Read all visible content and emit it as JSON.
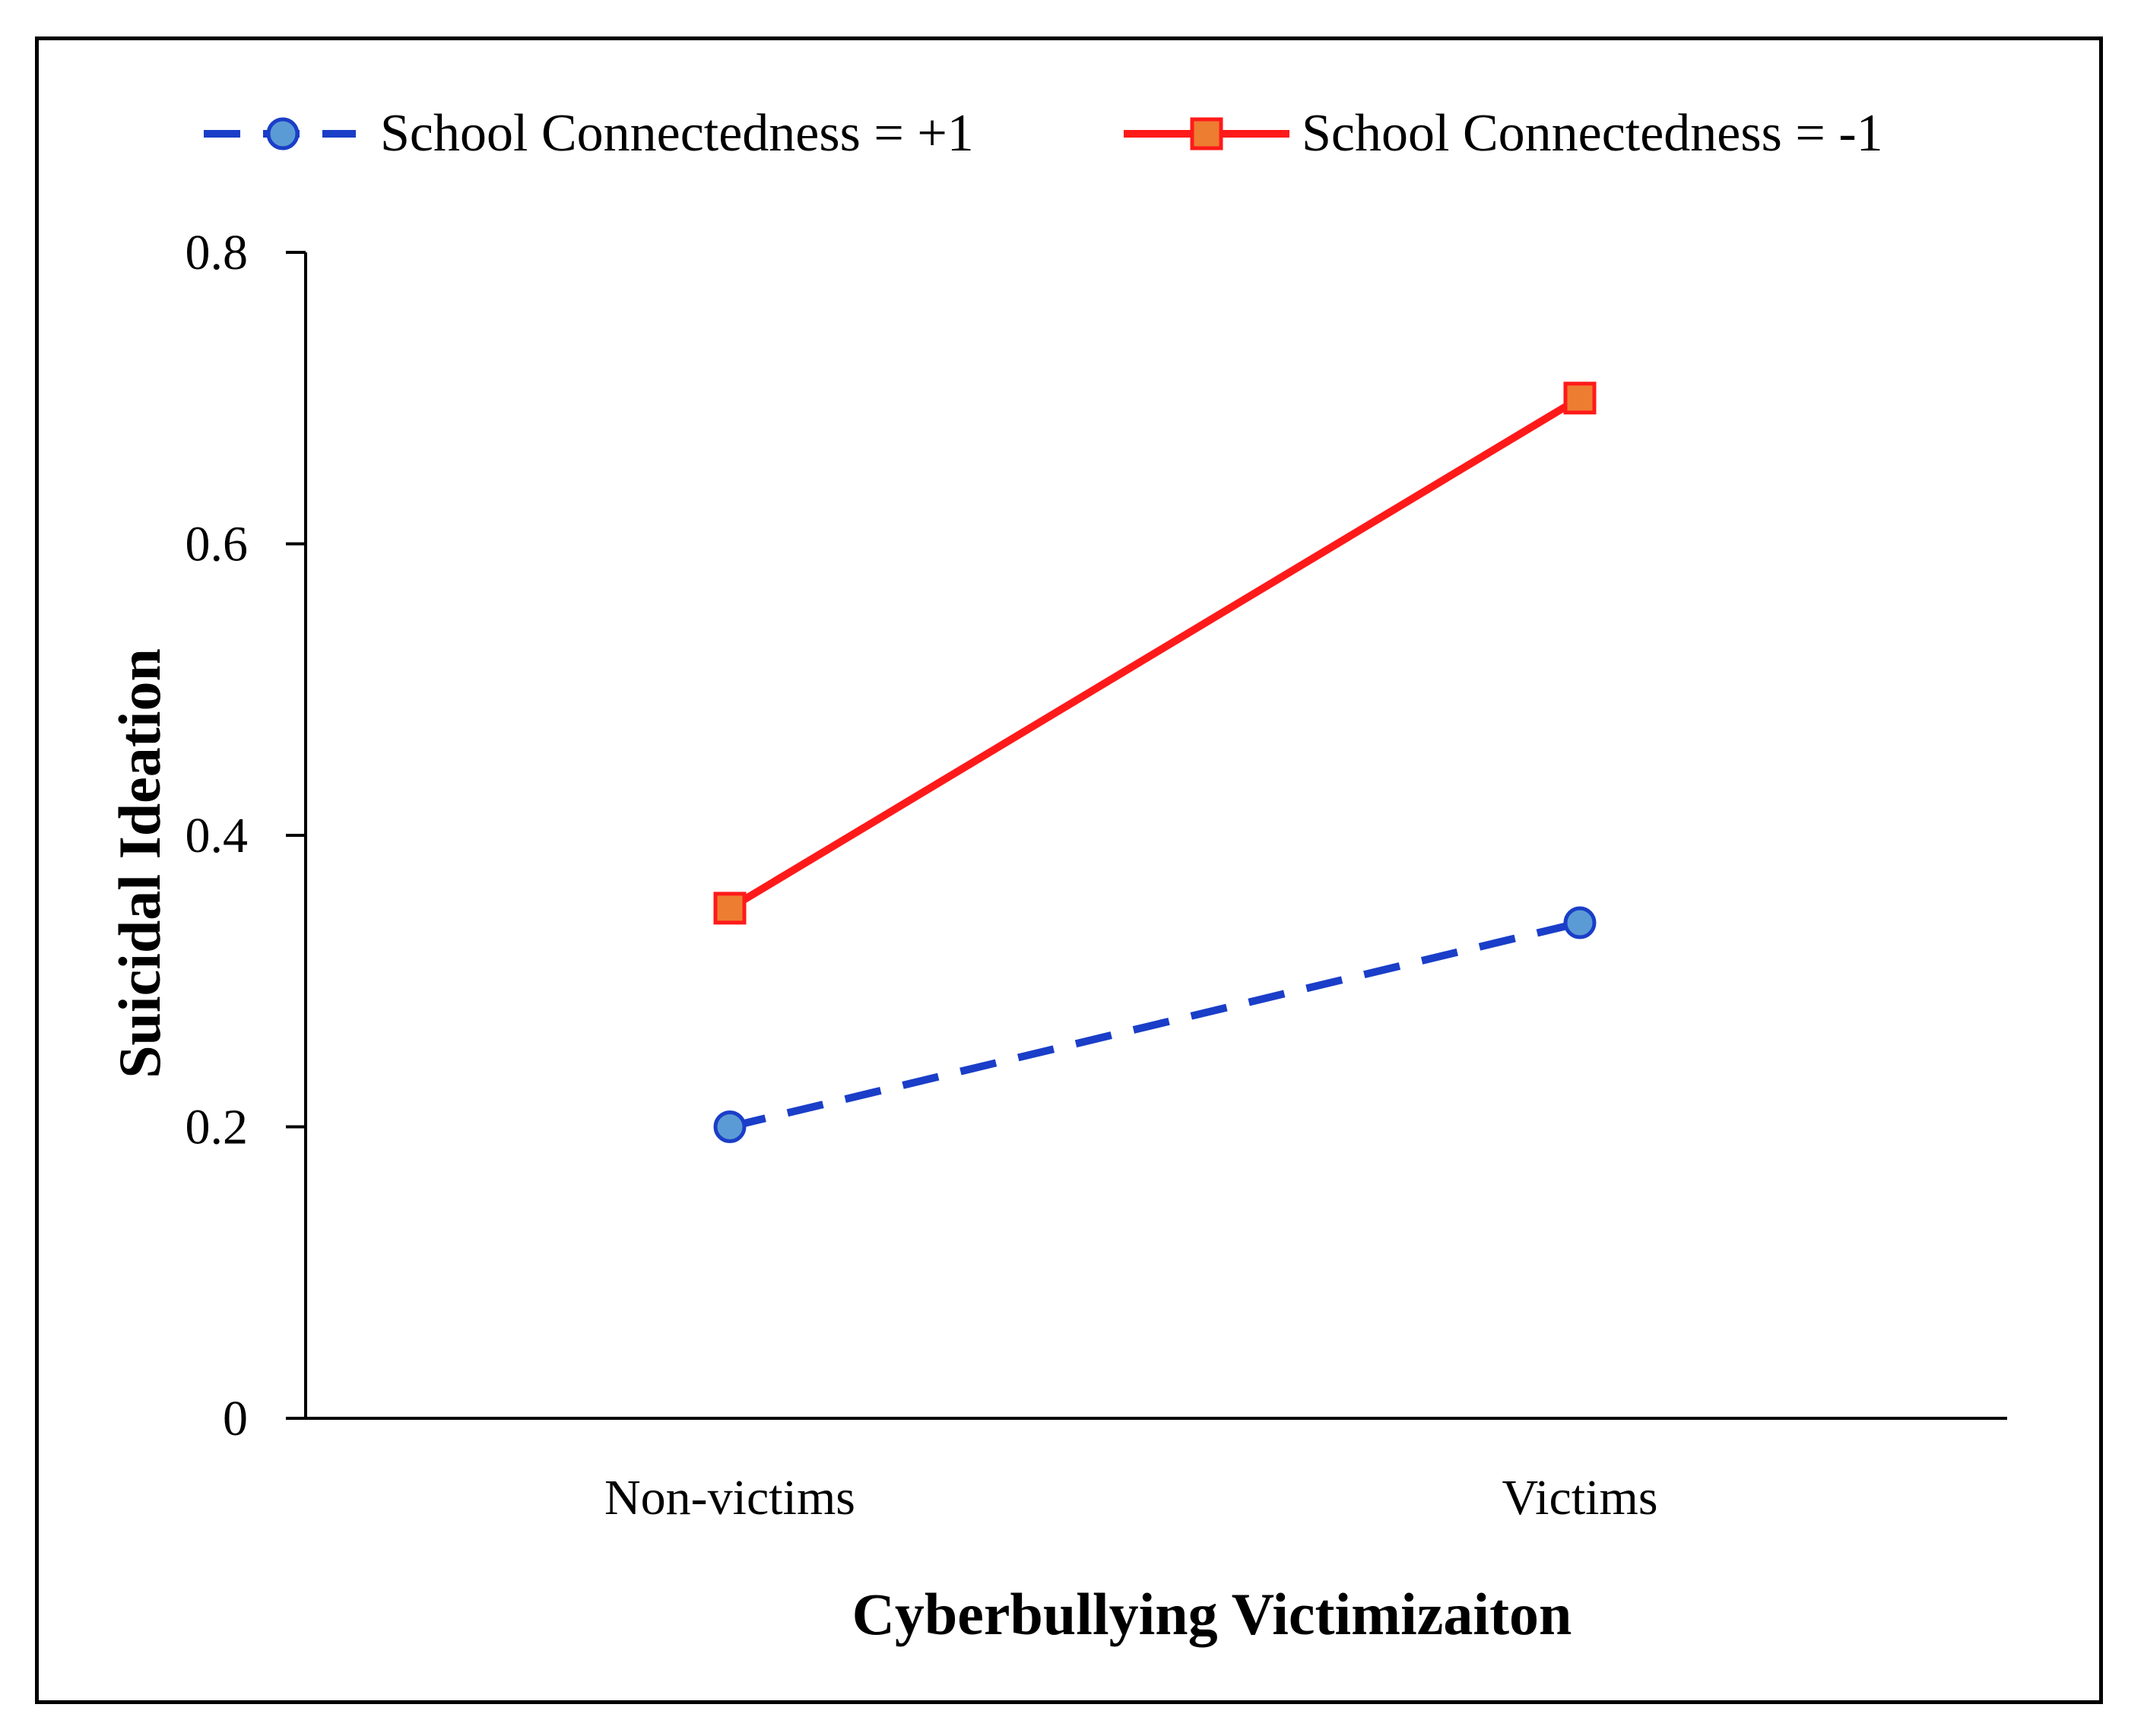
{
  "chart_data": {
    "type": "line",
    "title": "",
    "xlabel": "Cyberbullying Victimizaiton",
    "ylabel": "Suicidal Ideation",
    "categories": [
      "Non-victims",
      "Victims"
    ],
    "ylim": [
      0,
      0.8
    ],
    "yticks": [
      {
        "value": 0,
        "label": "0"
      },
      {
        "value": 0.2,
        "label": "0.2"
      },
      {
        "value": 0.4,
        "label": "0.4"
      },
      {
        "value": 0.6,
        "label": "0.6"
      },
      {
        "value": 0.8,
        "label": "0.8"
      }
    ],
    "grid": false,
    "legend_position": "top",
    "series": [
      {
        "name": "School Connectedness = +1",
        "values": [
          0.2,
          0.34
        ],
        "line_color": "#1a3ec8",
        "marker_fill": "#5b9bd5",
        "line_style": "dashed",
        "marker": "circle"
      },
      {
        "name": "School Connectedness = -1",
        "values": [
          0.35,
          0.7
        ],
        "line_color": "#ff1a1a",
        "marker_fill": "#ed7d31",
        "line_style": "solid",
        "marker": "square"
      }
    ]
  }
}
